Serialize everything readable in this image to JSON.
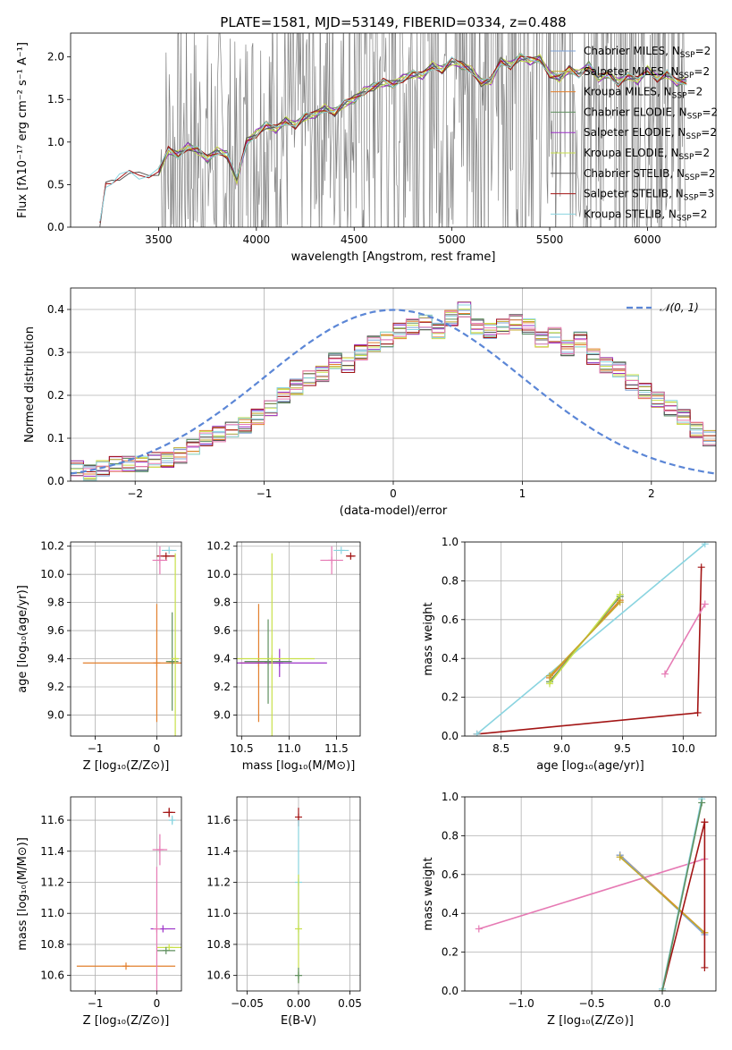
{
  "figure": {
    "title": "PLATE=1581, MJD=53149, FIBERID=0334, z=0.488"
  },
  "colors": {
    "chabrier_miles": "#7ea2d6",
    "salpeter_miles": "#c4a82c",
    "kroupa_miles": "#e27f2c",
    "chabrier_elodie": "#5f8f5f",
    "salpeter_elodie": "#9b30c8",
    "kroupa_elodie": "#c8e04a",
    "chabrier_stelib": "#555555",
    "salpeter_stelib": "#a31515",
    "kroupa_stelib": "#8ad4e0",
    "pink": "#e67ab4",
    "gaussian": "#5b86d6",
    "data_spectrum": "#808080"
  },
  "chart_data": [
    {
      "type": "line",
      "id": "spectrum",
      "xlabel": "wavelength [Angstrom, rest frame]",
      "ylabel": "Flux [fλ10⁻¹⁷ erg cm⁻² s⁻¹ A⁻¹]",
      "xlim": [
        3050,
        6350
      ],
      "ylim": [
        0,
        2.28
      ],
      "xticks": [
        "3500",
        "4000",
        "4500",
        "5000",
        "5500",
        "6000"
      ],
      "yticks": [
        "0.0",
        "0.5",
        "1.0",
        "1.5",
        "2.0"
      ],
      "legend_loc": "upper right",
      "legend": [
        "Chabrier MILES, N_SSP=2",
        "Salpeter MILES, N_SSP=2",
        "Kroupa MILES, N_SSP=2",
        "Chabrier ELODIE, N_SSP=2",
        "Salpeter ELODIE, N_SSP=2",
        "Kroupa ELODIE, N_SSP=2",
        "Chabrier STELIB, N_SSP=2",
        "Salpeter STELIB, N_SSP=3",
        "Kroupa STELIB, N_SSP=2"
      ],
      "model_continuum": {
        "x": [
          3200,
          3230,
          3260,
          3300,
          3350,
          3400,
          3450,
          3500,
          3550,
          3600,
          3650,
          3700,
          3750,
          3800,
          3850,
          3900,
          3950,
          4000,
          4050,
          4100,
          4150,
          4200,
          4250,
          4300,
          4350,
          4400,
          4450,
          4500,
          4550,
          4600,
          4650,
          4700,
          4750,
          4800,
          4850,
          4900,
          4950,
          5000,
          5050,
          5100,
          5150,
          5200,
          5250,
          5300,
          5350,
          5400,
          5450,
          5500,
          5550,
          5600,
          5650,
          5700,
          5750,
          5800,
          5850,
          5900,
          5950,
          6000,
          6050,
          6100,
          6150,
          6200
        ],
        "y": [
          0.02,
          0.48,
          0.55,
          0.6,
          0.62,
          0.6,
          0.63,
          0.65,
          0.9,
          0.85,
          0.95,
          0.9,
          0.8,
          0.9,
          0.85,
          0.55,
          1.0,
          1.1,
          1.2,
          1.15,
          1.25,
          1.2,
          1.3,
          1.32,
          1.4,
          1.35,
          1.45,
          1.5,
          1.6,
          1.65,
          1.7,
          1.68,
          1.75,
          1.8,
          1.78,
          1.9,
          1.85,
          1.95,
          1.9,
          1.85,
          1.7,
          1.72,
          1.95,
          1.9,
          2.0,
          1.95,
          1.98,
          1.8,
          1.75,
          1.85,
          1.8,
          1.9,
          1.75,
          1.8,
          1.7,
          1.78,
          1.72,
          1.85,
          1.75,
          1.8,
          1.7,
          1.72
        ]
      },
      "data_spectrum_range": [
        3510,
        6200
      ]
    },
    {
      "type": "step",
      "id": "residuals",
      "xlabel": "(data-model)/error",
      "ylabel": "Normed distribution",
      "xlim": [
        -2.5,
        2.5
      ],
      "ylim": [
        0,
        0.45
      ],
      "xticks": [
        "−2",
        "−1",
        "0",
        "1",
        "2"
      ],
      "yticks": [
        "0.0",
        "0.1",
        "0.2",
        "0.3",
        "0.4"
      ],
      "legend": [
        "𝒩(0, 1)"
      ],
      "legend_loc": "upper right",
      "bin_width": 0.1,
      "bins_start": -2.5,
      "histogram": [
        0.03,
        0.02,
        0.03,
        0.04,
        0.04,
        0.04,
        0.05,
        0.05,
        0.06,
        0.08,
        0.1,
        0.11,
        0.12,
        0.13,
        0.15,
        0.17,
        0.2,
        0.22,
        0.24,
        0.25,
        0.28,
        0.27,
        0.3,
        0.32,
        0.33,
        0.35,
        0.36,
        0.37,
        0.35,
        0.38,
        0.4,
        0.36,
        0.35,
        0.36,
        0.37,
        0.36,
        0.33,
        0.34,
        0.31,
        0.33,
        0.29,
        0.27,
        0.26,
        0.23,
        0.21,
        0.19,
        0.17,
        0.15,
        0.12,
        0.1
      ],
      "gaussian": {
        "mu": 0,
        "sigma": 1
      }
    },
    {
      "type": "scatter",
      "id": "age_vs_Z",
      "xlabel": "Z [log₁₀(Z/Z⊙)]",
      "ylabel": "age  [log₁₀(age/yr)]",
      "xlim": [
        -1.4,
        0.4
      ],
      "ylim": [
        8.85,
        10.23
      ],
      "xticks": [
        "−1",
        "0"
      ],
      "yticks": [
        "9.0",
        "9.2",
        "9.4",
        "9.6",
        "9.8",
        "10.0",
        "10.2"
      ],
      "points": [
        {
          "c": "salpeter_stelib",
          "x": 0.15,
          "y": 10.13,
          "ex": 0.15,
          "ey": 0.0
        },
        {
          "c": "kroupa_stelib",
          "x": 0.2,
          "y": 10.17,
          "ex": 0.12,
          "ey": 0.0
        },
        {
          "c": "pink",
          "x": 0.05,
          "y": 10.1,
          "ex": 0.12,
          "ey": 0.1
        },
        {
          "c": "kroupa_miles",
          "x": 0.0,
          "y": 9.37,
          "ex": 1.2,
          "ey": 0.42
        },
        {
          "c": "chabrier_elodie",
          "x": 0.25,
          "y": 9.38,
          "ex": 0.1,
          "ey": 0.35
        },
        {
          "c": "kroupa_elodie",
          "x": 0.3,
          "y": 9.4,
          "ex": 0.05,
          "ey": 0.75
        }
      ]
    },
    {
      "type": "scatter",
      "id": "age_vs_mass",
      "xlabel": "mass [log₁₀(M/M⊙)]",
      "ylabel": "",
      "xlim": [
        10.45,
        11.75
      ],
      "ylim": [
        8.85,
        10.23
      ],
      "xticks": [
        "10.5",
        "11.0",
        "11.5"
      ],
      "yticks": [
        "9.0",
        "9.2",
        "9.4",
        "9.6",
        "9.8",
        "10.0",
        "10.2"
      ],
      "points": [
        {
          "c": "salpeter_stelib",
          "x": 11.65,
          "y": 10.13,
          "ex": 0.05,
          "ey": 0.0
        },
        {
          "c": "kroupa_stelib",
          "x": 11.55,
          "y": 10.17,
          "ex": 0.08,
          "ey": 0.0
        },
        {
          "c": "pink",
          "x": 11.45,
          "y": 10.1,
          "ex": 0.12,
          "ey": 0.1
        },
        {
          "c": "kroupa_miles",
          "x": 10.68,
          "y": 9.37,
          "ex": 0.2,
          "ey": 0.42
        },
        {
          "c": "salpeter_elodie",
          "x": 10.9,
          "y": 9.37,
          "ex": 0.5,
          "ey": 0.1
        },
        {
          "c": "chabrier_elodie",
          "x": 10.78,
          "y": 9.38,
          "ex": 0.25,
          "ey": 0.3
        },
        {
          "c": "kroupa_elodie",
          "x": 10.82,
          "y": 9.4,
          "ex": 0.45,
          "ey": 0.75
        }
      ]
    },
    {
      "type": "line",
      "id": "weight_vs_age",
      "xlabel": "age  [log₁₀(age/yr)]",
      "ylabel": "mass weight",
      "xlim": [
        8.2,
        10.27
      ],
      "ylim": [
        0,
        1.0
      ],
      "xticks": [
        "8.5",
        "9.0",
        "9.5",
        "10.0"
      ],
      "yticks": [
        "0.0",
        "0.2",
        "0.4",
        "0.6",
        "0.8",
        "1.0"
      ],
      "series": [
        {
          "c": "salpeter_stelib",
          "x": [
            8.3,
            10.12,
            10.15
          ],
          "y": [
            0.01,
            0.12,
            0.87
          ]
        },
        {
          "c": "kroupa_stelib",
          "x": [
            8.3,
            10.18
          ],
          "y": [
            0.01,
            0.99
          ]
        },
        {
          "c": "pink",
          "x": [
            9.85,
            10.18
          ],
          "y": [
            0.32,
            0.68
          ]
        },
        {
          "c": "kroupa_miles",
          "x": [
            8.9,
            9.48
          ],
          "y": [
            0.3,
            0.7
          ]
        },
        {
          "c": "chabrier_elodie",
          "x": [
            8.9,
            9.48
          ],
          "y": [
            0.28,
            0.72
          ]
        },
        {
          "c": "kroupa_elodie",
          "x": [
            8.9,
            9.48
          ],
          "y": [
            0.27,
            0.73
          ]
        },
        {
          "c": "salpeter_miles",
          "x": [
            8.9,
            9.48
          ],
          "y": [
            0.31,
            0.69
          ]
        }
      ]
    },
    {
      "type": "scatter",
      "id": "mass_vs_Z",
      "xlabel": "Z [log₁₀(Z/Z⊙)]",
      "ylabel": "mass [log₁₀(M/M⊙)]",
      "xlim": [
        -1.4,
        0.4
      ],
      "ylim": [
        10.5,
        11.75
      ],
      "xticks": [
        "−1",
        "0"
      ],
      "yticks": [
        "10.6",
        "10.8",
        "11.0",
        "11.2",
        "11.4",
        "11.6"
      ],
      "points": [
        {
          "c": "salpeter_stelib",
          "x": 0.2,
          "y": 11.65,
          "ex": 0.1,
          "ey": 0.03
        },
        {
          "c": "kroupa_stelib",
          "x": 0.25,
          "y": 11.6,
          "ex": 0.05,
          "ey": 0.03
        },
        {
          "c": "pink",
          "x": 0.05,
          "y": 11.41,
          "ex": 0.12,
          "ey": 0.1
        },
        {
          "c": "salpeter_elodie",
          "x": 0.1,
          "y": 10.9,
          "ex": 0.2,
          "ey": 0.0
        },
        {
          "c": "kroupa_elodie",
          "x": 0.2,
          "y": 10.78,
          "ex": 0.2,
          "ey": 0.0
        },
        {
          "c": "chabrier_elodie",
          "x": 0.15,
          "y": 10.76,
          "ex": 0.15,
          "ey": 0.0
        },
        {
          "c": "kroupa_miles",
          "x": -0.5,
          "y": 10.66,
          "ex": 0.8,
          "ey": 0.0
        },
        {
          "c": "pink",
          "x": 0.0,
          "y": 10.9,
          "ex": 0.0,
          "ey": 0.4
        }
      ]
    },
    {
      "type": "scatter",
      "id": "mass_vs_ebv",
      "xlabel": "E(B-V)",
      "ylabel": "",
      "xlim": [
        -0.06,
        0.06
      ],
      "ylim": [
        10.5,
        11.75
      ],
      "xticks": [
        "−0.05",
        "0.00",
        "0.05"
      ],
      "yticks": [
        "10.6",
        "10.8",
        "11.0",
        "11.2",
        "11.4",
        "11.6"
      ],
      "points": [
        {
          "c": "salpeter_stelib",
          "x": 0.0,
          "y": 11.62,
          "ex": 0.0,
          "ey": 0.06
        },
        {
          "c": "kroupa_stelib",
          "x": 0.0,
          "y": 11.2,
          "ex": 0.0,
          "ey": 0.4
        },
        {
          "c": "kroupa_elodie",
          "x": 0.0,
          "y": 10.9,
          "ex": 0.0,
          "ey": 0.35
        },
        {
          "c": "chabrier_elodie",
          "x": 0.0,
          "y": 10.6,
          "ex": 0.0,
          "ey": 0.05
        }
      ]
    },
    {
      "type": "line",
      "id": "weight_vs_Z",
      "xlabel": "Z [log₁₀(Z/Z⊙)]",
      "ylabel": "mass weight",
      "xlim": [
        -1.4,
        0.38
      ],
      "ylim": [
        0,
        1.0
      ],
      "xticks": [
        "−1.0",
        "−0.5",
        "0.0"
      ],
      "yticks": [
        "0.0",
        "0.2",
        "0.4",
        "0.6",
        "0.8",
        "1.0"
      ],
      "series": [
        {
          "c": "pink",
          "x": [
            -1.3,
            0.3
          ],
          "y": [
            0.32,
            0.68
          ]
        },
        {
          "c": "kroupa_miles",
          "x": [
            -0.3,
            0.3
          ],
          "y": [
            0.7,
            0.3
          ]
        },
        {
          "c": "chabrier_miles",
          "x": [
            -0.3,
            0.3
          ],
          "y": [
            0.7,
            0.29
          ]
        },
        {
          "c": "salpeter_miles",
          "x": [
            -0.3,
            0.3
          ],
          "y": [
            0.69,
            0.3
          ]
        },
        {
          "c": "salpeter_stelib",
          "x": [
            0.0,
            0.3,
            0.3,
            0.3
          ],
          "y": [
            0.0,
            0.87,
            0.12,
            0.87
          ]
        },
        {
          "c": "kroupa_stelib",
          "x": [
            0.0,
            0.28
          ],
          "y": [
            0.01,
            0.99
          ]
        },
        {
          "c": "chabrier_elodie",
          "x": [
            0.0,
            0.28
          ],
          "y": [
            0.0,
            0.97
          ]
        }
      ]
    }
  ]
}
